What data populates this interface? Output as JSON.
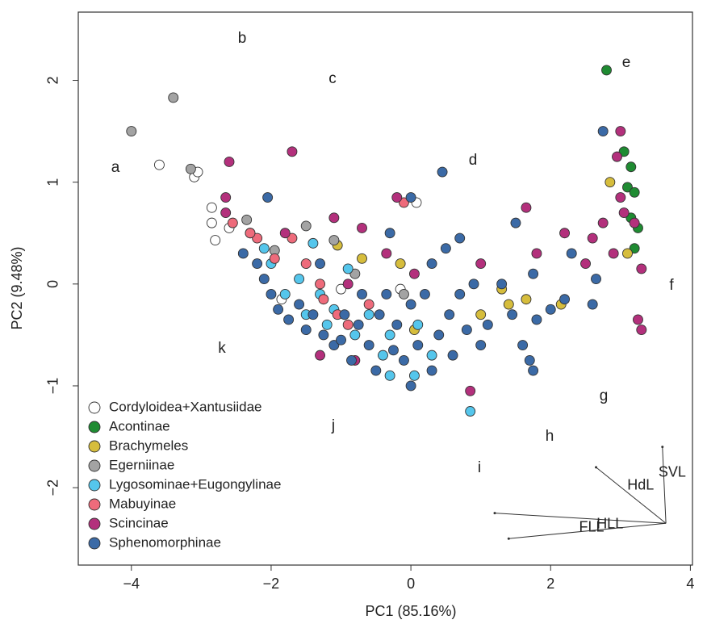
{
  "chart_data": {
    "type": "scatter",
    "x_label": "PC1 (85.16%)",
    "y_label": "PC2 (9.48%)",
    "xlim": [
      -4.76,
      4.03
    ],
    "ylim": [
      -2.76,
      2.67
    ],
    "xticks": [
      {
        "value": -4,
        "label": "−4"
      },
      {
        "value": -2,
        "label": "−2"
      },
      0,
      2,
      4
    ],
    "yticks": [
      {
        "value": -2,
        "label": "−2"
      },
      {
        "value": -1,
        "label": "−1"
      },
      0,
      1,
      2
    ],
    "annotations": [
      "a",
      "b",
      "c",
      "d",
      "e",
      "f",
      "g",
      "h",
      "i",
      "j",
      "k"
    ],
    "vector_origin": [
      3.65,
      -2.35
    ],
    "vectors": [
      {
        "name": "SVL",
        "x": 3.6,
        "y": -1.6
      },
      {
        "name": "HdL",
        "x": 2.65,
        "y": -1.8
      },
      {
        "name": "FLL",
        "x": 1.2,
        "y": -2.25
      },
      {
        "name": "HLL",
        "x": 1.4,
        "y": -2.5
      }
    ],
    "series": [
      {
        "name": "Cordyloidea+Xantusiidae",
        "color": "#ffffff",
        "x": [
          -3.6,
          -3.1,
          -2.85,
          -2.85,
          -2.6,
          -2.8,
          -1.85,
          0.08,
          -1.0,
          -0.15,
          -3.05
        ],
        "values": [
          1.17,
          1.05,
          0.75,
          0.6,
          0.55,
          0.43,
          -0.15,
          0.8,
          -0.05,
          -0.05,
          1.1
        ]
      },
      {
        "name": "Acontinae",
        "color": "#1f8b32",
        "x": [
          2.8,
          3.05,
          3.15,
          3.1,
          3.2,
          3.15,
          3.2,
          3.25
        ],
        "values": [
          2.1,
          1.3,
          1.15,
          0.95,
          0.9,
          0.65,
          0.35,
          0.55
        ]
      },
      {
        "name": "Brachymeles",
        "color": "#d6bd3c",
        "x": [
          -1.05,
          -0.15,
          0.05,
          2.85,
          1.0,
          1.3,
          1.4,
          1.65,
          2.15,
          3.1,
          -0.7
        ],
        "values": [
          0.38,
          0.2,
          -0.45,
          1.0,
          -0.3,
          -0.05,
          -0.2,
          -0.15,
          -0.2,
          0.3,
          0.25
        ]
      },
      {
        "name": "Egerniinae",
        "color": "#a3a3a3",
        "x": [
          -3.4,
          -4.0,
          -3.15,
          -2.35,
          -1.95,
          -1.1,
          -1.5,
          -0.8,
          -0.1
        ],
        "values": [
          1.83,
          1.5,
          1.13,
          0.63,
          0.33,
          0.43,
          0.57,
          0.1,
          -0.1
        ]
      },
      {
        "name": "Lygosominae+Eugongylinae",
        "color": "#55c6ec",
        "x": [
          -2.3,
          -2.0,
          -1.6,
          -1.3,
          -1.1,
          -1.2,
          -1.5,
          -0.9,
          -0.6,
          -0.3,
          -0.4,
          -0.3,
          0.05,
          0.1,
          0.85,
          -1.8,
          -1.4,
          -0.8,
          0.3,
          -2.1
        ],
        "values": [
          0.5,
          0.2,
          0.05,
          -0.1,
          -0.25,
          -0.4,
          -0.3,
          0.15,
          -0.3,
          -0.5,
          -0.7,
          -0.9,
          -0.9,
          -0.4,
          -1.25,
          -0.1,
          0.4,
          -0.5,
          -0.7,
          0.35
        ]
      },
      {
        "name": "Mabuyinae",
        "color": "#ee6b7b",
        "x": [
          -2.55,
          -2.2,
          -1.95,
          -1.7,
          -1.5,
          -1.25,
          -1.05,
          -0.6,
          -0.1,
          -0.9,
          -1.3,
          -2.3
        ],
        "values": [
          0.6,
          0.45,
          0.25,
          0.45,
          0.2,
          -0.15,
          -0.3,
          -0.2,
          0.8,
          -0.4,
          0.0,
          0.5
        ]
      },
      {
        "name": "Scincinae",
        "color": "#b3307c",
        "x": [
          -2.6,
          -1.7,
          -2.65,
          -2.65,
          -1.8,
          -1.1,
          -0.2,
          -0.7,
          0.05,
          1.0,
          1.65,
          2.2,
          2.6,
          2.75,
          3.0,
          2.95,
          3.05,
          3.2,
          3.3,
          3.25,
          3.3,
          2.9,
          0.85,
          -1.3,
          -0.8,
          -0.35,
          1.8,
          2.5,
          -0.9,
          3.0
        ],
        "values": [
          1.2,
          1.3,
          0.85,
          0.7,
          0.5,
          0.65,
          0.85,
          0.55,
          0.1,
          0.2,
          0.75,
          0.5,
          0.45,
          0.6,
          1.5,
          1.25,
          0.7,
          0.6,
          0.15,
          -0.35,
          -0.45,
          0.3,
          -1.05,
          -0.7,
          -0.75,
          0.3,
          0.3,
          0.2,
          0.0,
          0.85
        ]
      },
      {
        "name": "Sphenomorphinae",
        "color": "#3b6aa6",
        "x": [
          -2.05,
          -2.4,
          -2.2,
          -2.1,
          -2.0,
          -1.9,
          -1.75,
          -1.6,
          -1.5,
          -1.4,
          -1.25,
          -1.1,
          -1.0,
          -0.95,
          -0.85,
          -0.75,
          -0.7,
          -0.6,
          -0.5,
          -0.45,
          -0.35,
          -0.25,
          -0.2,
          -0.1,
          0.0,
          0.1,
          0.2,
          0.3,
          0.4,
          0.45,
          0.5,
          0.55,
          0.6,
          0.7,
          0.8,
          0.9,
          1.0,
          1.1,
          1.3,
          1.5,
          1.45,
          1.6,
          1.7,
          1.8,
          2.0,
          2.2,
          2.6,
          2.65,
          2.75,
          0.0,
          -0.3,
          0.7,
          1.75,
          -1.3,
          0.3,
          0.0,
          1.75,
          2.3
        ],
        "values": [
          0.85,
          0.3,
          0.2,
          0.05,
          -0.1,
          -0.25,
          -0.35,
          -0.2,
          -0.45,
          -0.3,
          -0.5,
          -0.6,
          -0.55,
          -0.3,
          -0.75,
          -0.4,
          -0.1,
          -0.6,
          -0.85,
          -0.3,
          -0.1,
          -0.65,
          -0.4,
          -0.75,
          -0.2,
          -0.6,
          -0.1,
          -0.85,
          -0.5,
          1.1,
          0.35,
          -0.3,
          -0.7,
          -0.1,
          -0.45,
          0.0,
          -0.6,
          -0.4,
          0.0,
          0.6,
          -0.3,
          -0.6,
          -0.75,
          -0.35,
          -0.25,
          -0.15,
          -0.2,
          0.05,
          1.5,
          0.85,
          0.5,
          0.45,
          0.1,
          0.2,
          0.2,
          -1.0,
          -0.85,
          0.3
        ]
      }
    ]
  }
}
